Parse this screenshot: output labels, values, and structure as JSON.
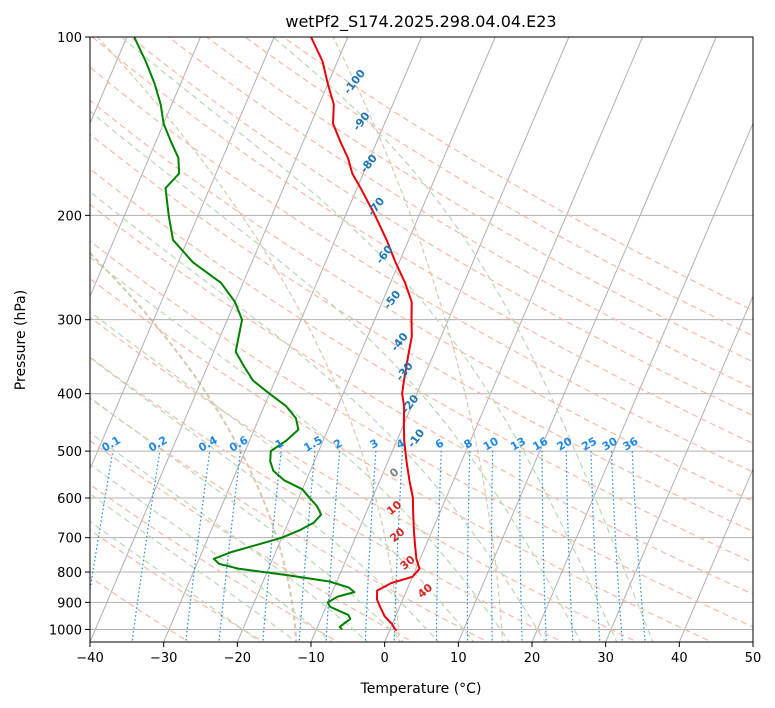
{
  "chart_data": {
    "type": "line",
    "subtype": "skew-t log-p diagram",
    "title": "wetPf2_S174.2025.298.04.04.E23",
    "xlabel": "Temperature (°C)",
    "ylabel": "Pressure (hPa)",
    "xlim": [
      -40,
      50
    ],
    "ylim": [
      1050,
      100
    ],
    "grid": true,
    "x_ticks": [
      -40,
      -30,
      -20,
      -10,
      0,
      10,
      20,
      30,
      40,
      50
    ],
    "x_tick_labels": [
      "−40",
      "−30",
      "−20",
      "−10",
      "0",
      "10",
      "20",
      "30",
      "40",
      "50"
    ],
    "y_ticks": [
      100,
      200,
      300,
      400,
      500,
      600,
      700,
      800,
      900,
      1000
    ],
    "y_tick_labels": [
      "100",
      "200",
      "300",
      "400",
      "500",
      "600",
      "700",
      "800",
      "900",
      "1000"
    ],
    "colors": {
      "temperature": "#e8000b",
      "dewpoint": "#008000",
      "isotherm": "#b0b0b0",
      "dry_adiabat": "#f9b9a6",
      "moist_adiabat": "#b7d9b3",
      "mixing_ratio": "#1e88e5",
      "wetbulb_label": "#1f77b4",
      "curved_line": "#dcc7ae"
    },
    "series": [
      {
        "name": "Temperature",
        "color": "#e8000b",
        "pressure": [
          1005,
          995,
          980,
          950,
          920,
          890,
          860,
          835,
          815,
          790,
          760,
          720,
          680,
          640,
          600,
          560,
          520,
          480,
          450,
          420,
          400,
          380,
          360,
          340,
          320,
          300,
          280,
          260,
          240,
          220,
          200,
          180,
          170,
          160,
          150,
          140,
          130,
          120,
          110,
          100
        ],
        "temperature": [
          1,
          0.5,
          0,
          -1.5,
          -2.5,
          -3.5,
          -4,
          -2.5,
          0,
          0.5,
          -0.5,
          -1.5,
          -2.5,
          -3.5,
          -4.5,
          -6,
          -7.5,
          -9,
          -10,
          -11,
          -12,
          -12.5,
          -13,
          -13.5,
          -14,
          -15,
          -16,
          -18,
          -20.5,
          -23,
          -26,
          -29.5,
          -31.5,
          -33,
          -35,
          -37,
          -38,
          -40,
          -42,
          -45
        ]
      },
      {
        "name": "Dewpoint",
        "color": "#008000",
        "pressure": [
          1000,
          990,
          975,
          960,
          945,
          930,
          915,
          900,
          880,
          865,
          850,
          830,
          810,
          790,
          775,
          760,
          740,
          720,
          700,
          680,
          660,
          640,
          620,
          600,
          580,
          560,
          540,
          520,
          500,
          480,
          460,
          440,
          420,
          400,
          380,
          360,
          340,
          320,
          300,
          280,
          260,
          240,
          220,
          200,
          180,
          170,
          160,
          150,
          140,
          130,
          120,
          110,
          100
        ],
        "temperature": [
          -6.5,
          -7,
          -6.5,
          -6,
          -6.5,
          -8,
          -9.5,
          -10,
          -9,
          -7,
          -8,
          -11,
          -17,
          -24,
          -27,
          -28,
          -26,
          -23,
          -20,
          -18,
          -16.5,
          -16,
          -17,
          -18.5,
          -20,
          -23,
          -25,
          -26,
          -26.5,
          -25,
          -24,
          -25,
          -27,
          -30,
          -33,
          -35,
          -37,
          -37.5,
          -38,
          -40,
          -43,
          -48,
          -52,
          -54,
          -56,
          -55,
          -56,
          -58,
          -60,
          -61.5,
          -63.5,
          -66,
          -69
        ]
      }
    ],
    "dry_adiabats_celsius_at_1000hPa": [
      -30,
      -20,
      -10,
      0,
      10,
      20,
      30,
      40,
      50,
      60,
      70,
      80,
      90,
      100,
      110,
      120,
      130,
      140,
      150,
      160
    ],
    "moist_adiabats_celsius_at_1000hPa": [
      -20,
      -15,
      -10,
      -5,
      0,
      5,
      10,
      15,
      20,
      25,
      30,
      35
    ],
    "wetbulb_potential_temperature_labels": [
      {
        "value": "-100",
        "pressure": 120
      },
      {
        "value": "-90",
        "pressure": 140
      },
      {
        "value": "-80",
        "pressure": 165
      },
      {
        "value": "-70",
        "pressure": 195
      },
      {
        "value": "-60",
        "pressure": 235
      },
      {
        "value": "-50",
        "pressure": 280
      },
      {
        "value": "-40",
        "pressure": 330
      },
      {
        "value": "-30",
        "pressure": 370
      },
      {
        "value": "-20",
        "pressure": 420
      },
      {
        "value": "-10",
        "pressure": 480
      }
    ],
    "isotherm_labels": [
      {
        "value": "0",
        "pressure": 550,
        "color": "#808080"
      },
      {
        "value": "10",
        "pressure": 630,
        "color": "#d62728"
      },
      {
        "value": "20",
        "pressure": 700,
        "color": "#d62728"
      },
      {
        "value": "30",
        "pressure": 780,
        "color": "#d62728"
      },
      {
        "value": "40",
        "pressure": 870,
        "color": "#d62728"
      }
    ],
    "mixing_ratio_gkg": [
      0.1,
      0.2,
      0.4,
      0.6,
      1,
      1.5,
      2,
      3,
      4,
      6,
      8,
      10,
      13,
      16,
      20,
      25,
      30,
      36
    ],
    "mixing_ratio_labels": [
      "0.1",
      "0.2",
      "0.4",
      "0.6",
      "1",
      "1.5",
      "2",
      "3",
      "4",
      "6",
      "8",
      "10",
      "13",
      "16",
      "20",
      "25",
      "30",
      "36"
    ],
    "mixing_ratio_label_pressure": 500
  }
}
